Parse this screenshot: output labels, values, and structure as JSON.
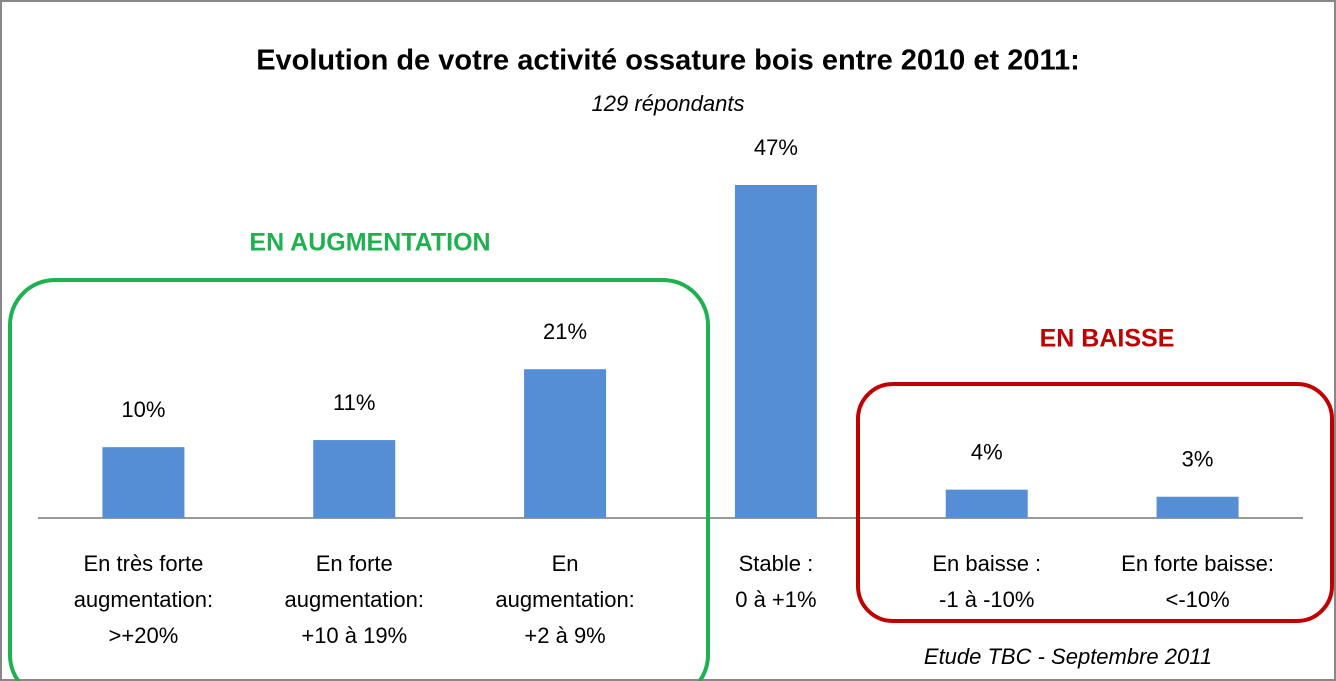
{
  "chart_data": {
    "type": "bar",
    "title": "Evolution de votre activité ossature bois entre 2010 et 2011:",
    "subtitle": "129 répondants",
    "categories": [
      [
        "En très forte",
        "augmentation:",
        ">+20%"
      ],
      [
        "En forte",
        "augmentation:",
        "+10 à 19%"
      ],
      [
        "En",
        "augmentation:",
        "+2 à 9%"
      ],
      [
        "Stable :",
        "0 à +1%"
      ],
      [
        "En baisse :",
        "-1 à -10%"
      ],
      [
        "En forte baisse:",
        "<-10%"
      ]
    ],
    "values": [
      10,
      11,
      21,
      47,
      4,
      3
    ],
    "value_labels": [
      "10%",
      "11%",
      "21%",
      "47%",
      "4%",
      "3%"
    ],
    "color": "#558ed5",
    "annotations": {
      "increase": {
        "text": "EN AUGMENTATION",
        "color": "#1fb050"
      },
      "decrease": {
        "text": "EN BAISSE",
        "color": "#c00000"
      },
      "source": "Etude TBC - Septembre 2011"
    }
  }
}
